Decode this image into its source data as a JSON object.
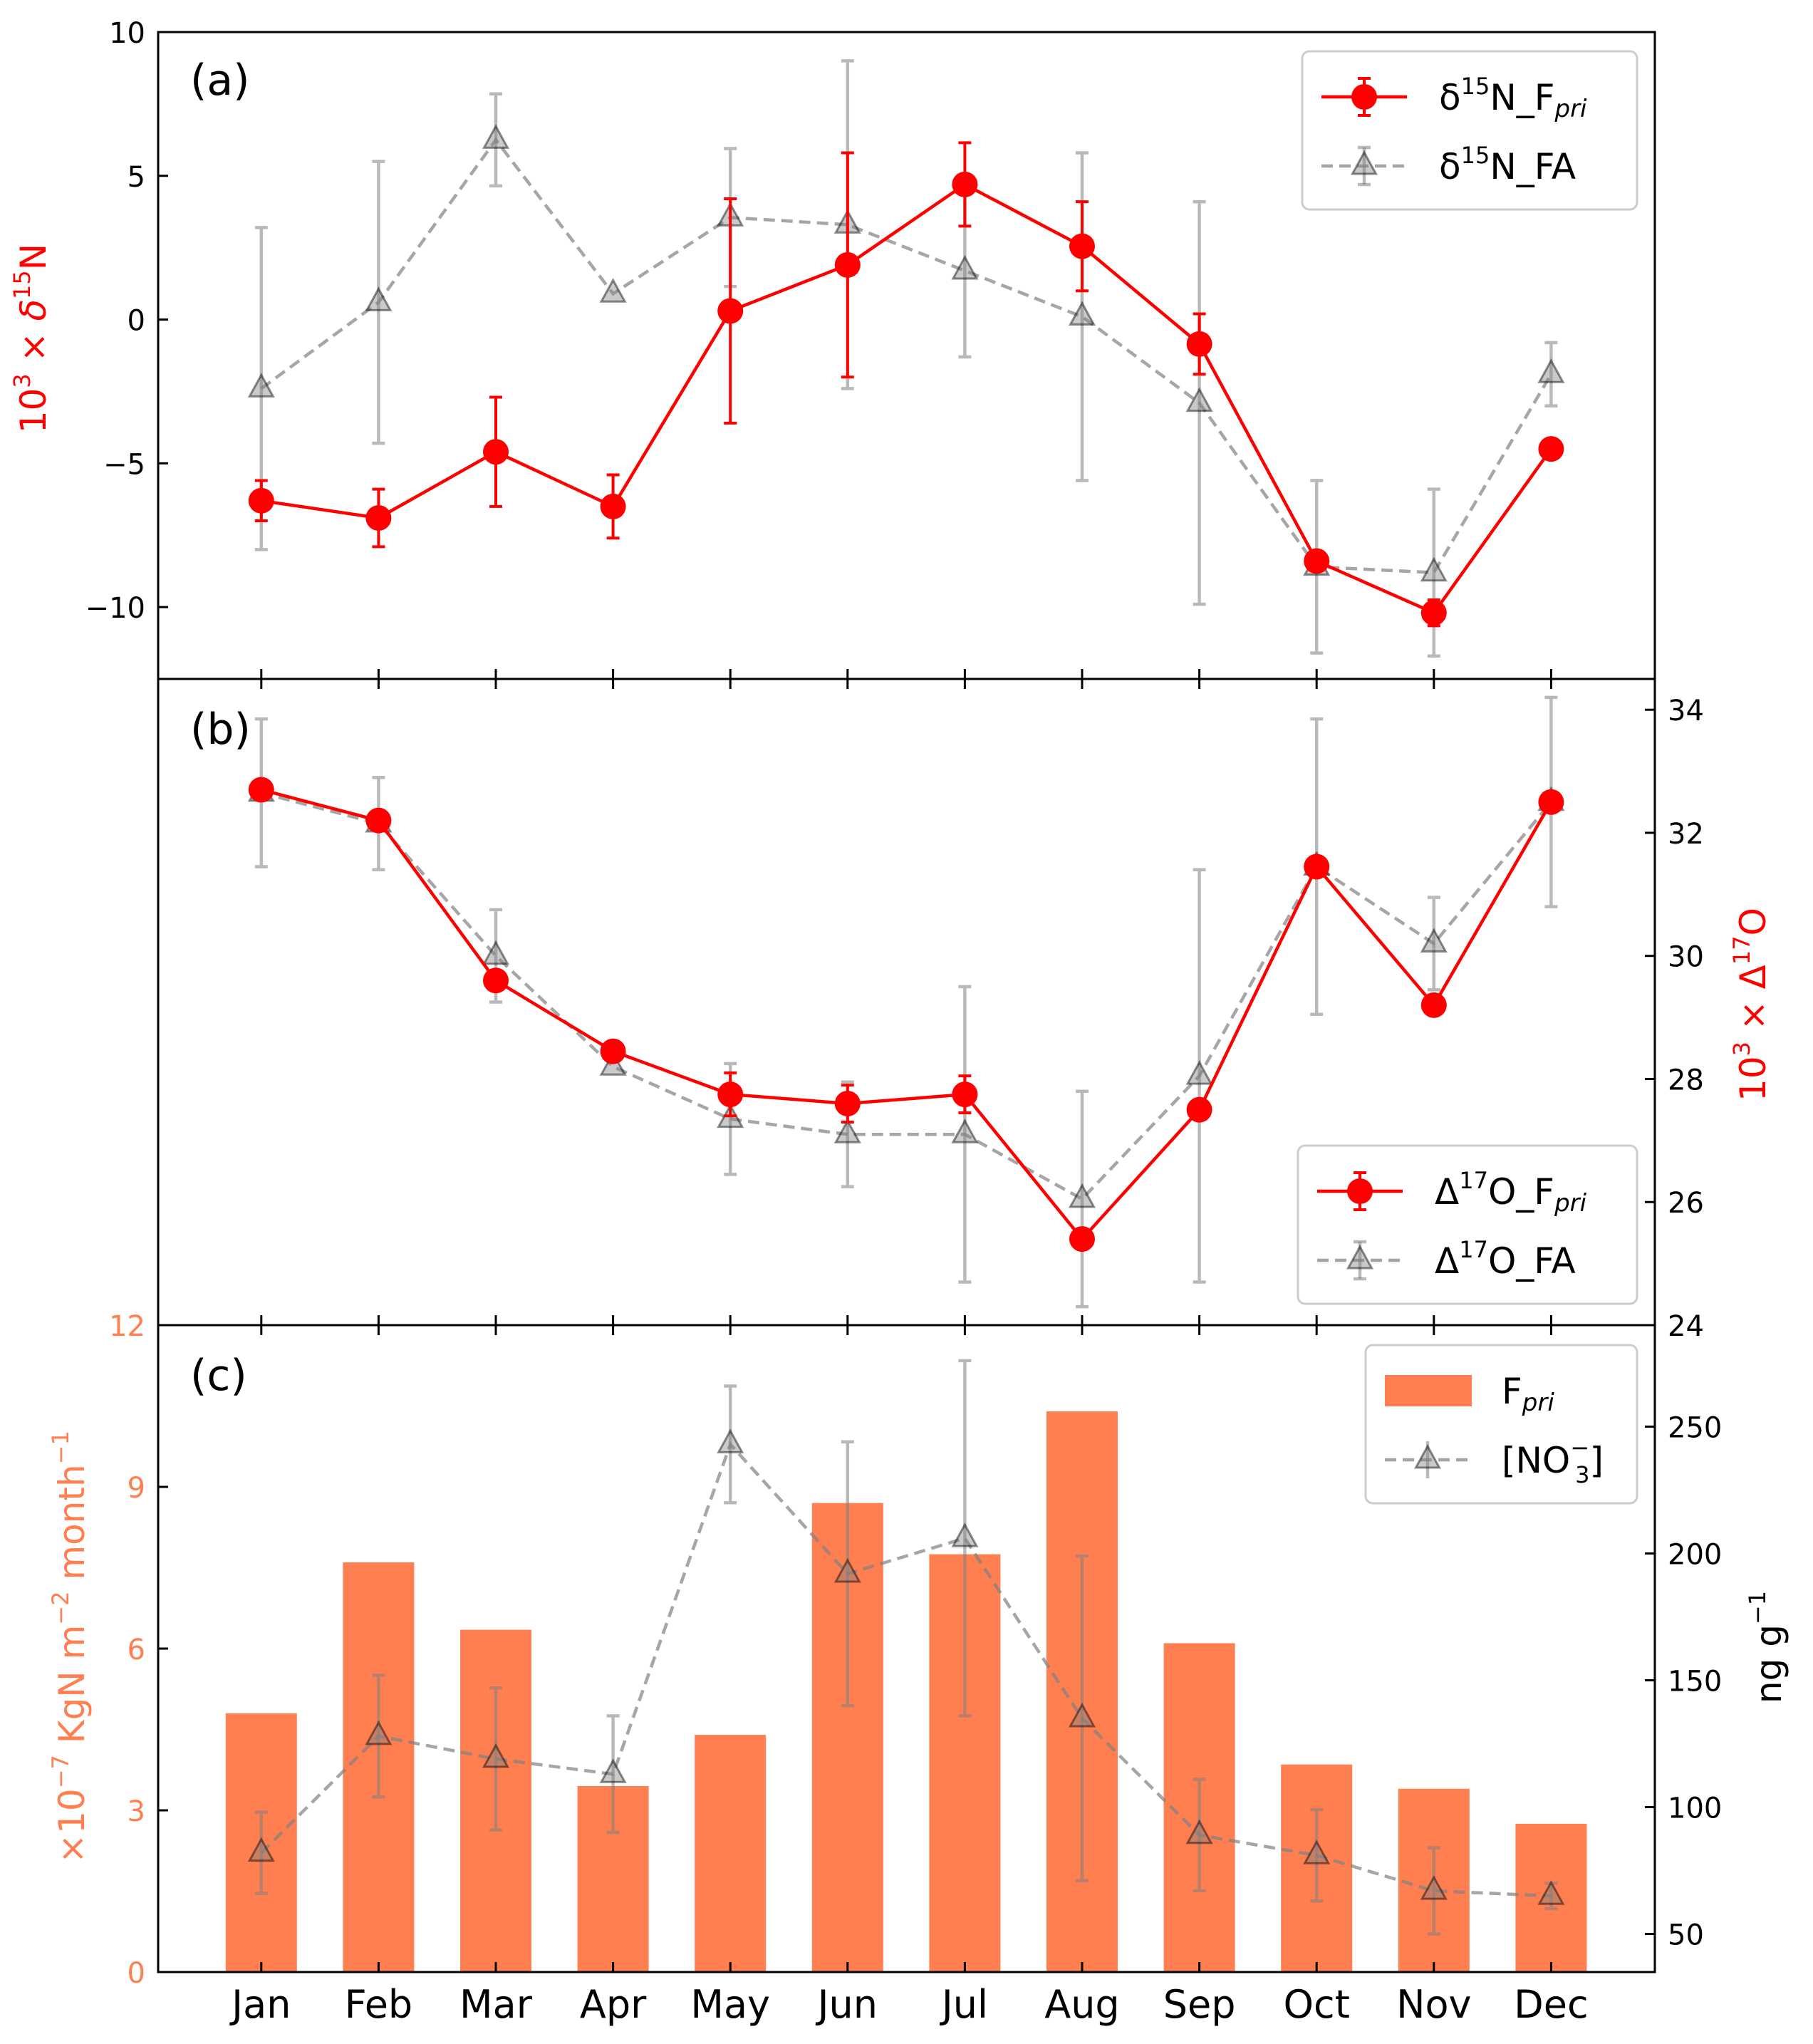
{
  "months": [
    "Jan",
    "Feb",
    "Mar",
    "Apr",
    "May",
    "Jun",
    "Jul",
    "Aug",
    "Sep",
    "Oct",
    "Nov",
    "Dec"
  ],
  "colors": {
    "red": "#ff0000",
    "gray": "#808080",
    "bar": "#ff7f50",
    "axis": "#000000"
  },
  "chart_data": [
    {
      "type": "line",
      "panel_label": "(a)",
      "ylabel": {
        "base": "10",
        "exp": "3",
        "mid": " × ",
        "sym": "δ",
        "sup": "15",
        "tail": "N"
      },
      "yticks": [
        10,
        5,
        0,
        -5,
        -10
      ],
      "ytick_labels": [
        "10",
        "5",
        "0",
        "−5",
        "−10"
      ],
      "ylim": [
        -12.5,
        10
      ],
      "legend": [
        {
          "base": "δ",
          "sup": "15",
          "mid": "N_F",
          "sub": "pri"
        },
        {
          "base": "δ",
          "sup": "15",
          "mid": "N_FA",
          "sub": ""
        }
      ],
      "series": [
        {
          "values": [
            -6.3,
            -6.9,
            -4.6,
            -6.5,
            0.3,
            1.9,
            4.7,
            2.55,
            -0.85,
            -8.4,
            -10.2,
            -4.5
          ],
          "err": [
            0.7,
            1.0,
            1.9,
            1.1,
            3.9,
            3.9,
            1.45,
            1.55,
            1.05,
            0.0,
            0.45,
            0.0
          ]
        },
        {
          "values": [
            -2.4,
            0.6,
            6.25,
            0.9,
            3.55,
            3.3,
            1.7,
            0.1,
            -2.9,
            -8.6,
            -8.8,
            -1.9
          ],
          "err": [
            5.6,
            4.9,
            1.6,
            0.0,
            2.4,
            5.7,
            3.0,
            5.7,
            7.0,
            3.0,
            2.9,
            1.1
          ]
        }
      ]
    },
    {
      "type": "line",
      "panel_label": "(b)",
      "ylabel": {
        "base": "10",
        "exp": "3",
        "mid": " × ",
        "sym": "Δ",
        "sup": "17",
        "tail": "O"
      },
      "yticks": [
        24,
        26,
        28,
        30,
        32,
        34
      ],
      "ytick_labels": [
        "24",
        "26",
        "28",
        "30",
        "32",
        "34"
      ],
      "ylim": [
        24,
        34.5
      ],
      "legend": [
        {
          "base": "Δ",
          "sup": "17",
          "mid": "O_F",
          "sub": "pri"
        },
        {
          "base": "Δ",
          "sup": "17",
          "mid": "O_FA",
          "sub": ""
        }
      ],
      "series": [
        {
          "values": [
            32.7,
            32.2,
            29.6,
            28.45,
            27.75,
            27.6,
            27.75,
            25.4,
            27.5,
            31.45,
            29.2,
            32.5
          ],
          "err": [
            0.0,
            0.0,
            0.0,
            0.0,
            0.35,
            0.3,
            0.3,
            0.0,
            0.0,
            0.0,
            0.0,
            0.0
          ]
        },
        {
          "values": [
            32.65,
            32.15,
            30.0,
            28.2,
            27.35,
            27.1,
            27.1,
            26.05,
            28.05,
            31.45,
            30.2,
            32.5
          ],
          "err": [
            1.2,
            0.75,
            0.75,
            0.0,
            0.9,
            0.85,
            2.4,
            1.75,
            3.35,
            2.4,
            0.75,
            1.7
          ]
        }
      ]
    },
    {
      "type": "bar",
      "panel_label": "(c)",
      "ylabel_left": {
        "pre": "×10",
        "exp1": "−7",
        "mid": " KgN m",
        "exp2": "−2",
        "tail": " month",
        "exp3": "−1"
      },
      "ylabel_right": {
        "base": "ng g",
        "exp": "−1"
      },
      "yticks_left": [
        0,
        3,
        6,
        9,
        12
      ],
      "ytick_labels_left": [
        "0",
        "3",
        "6",
        "9",
        "12"
      ],
      "ylim_left": [
        0,
        12
      ],
      "yticks_right": [
        50,
        100,
        150,
        200,
        250
      ],
      "ytick_labels_right": [
        "50",
        "100",
        "150",
        "200",
        "250"
      ],
      "ylim_right": [
        35,
        290
      ],
      "legend": [
        {
          "base": "F",
          "sub": "pri"
        },
        {
          "base": "[NO",
          "sup": "−",
          "sub": "3",
          "tail": "]"
        }
      ],
      "bars": [
        4.8,
        7.6,
        6.35,
        3.45,
        4.4,
        8.7,
        7.75,
        10.4,
        6.1,
        3.85,
        3.4,
        2.75
      ],
      "series": [
        {
          "values": [
            82,
            128,
            119,
            113,
            243,
            192,
            206,
            135,
            89,
            81,
            67,
            65
          ],
          "err": [
            16,
            24,
            28,
            23,
            23,
            52,
            70,
            64,
            22,
            18,
            17,
            5
          ]
        }
      ]
    }
  ]
}
